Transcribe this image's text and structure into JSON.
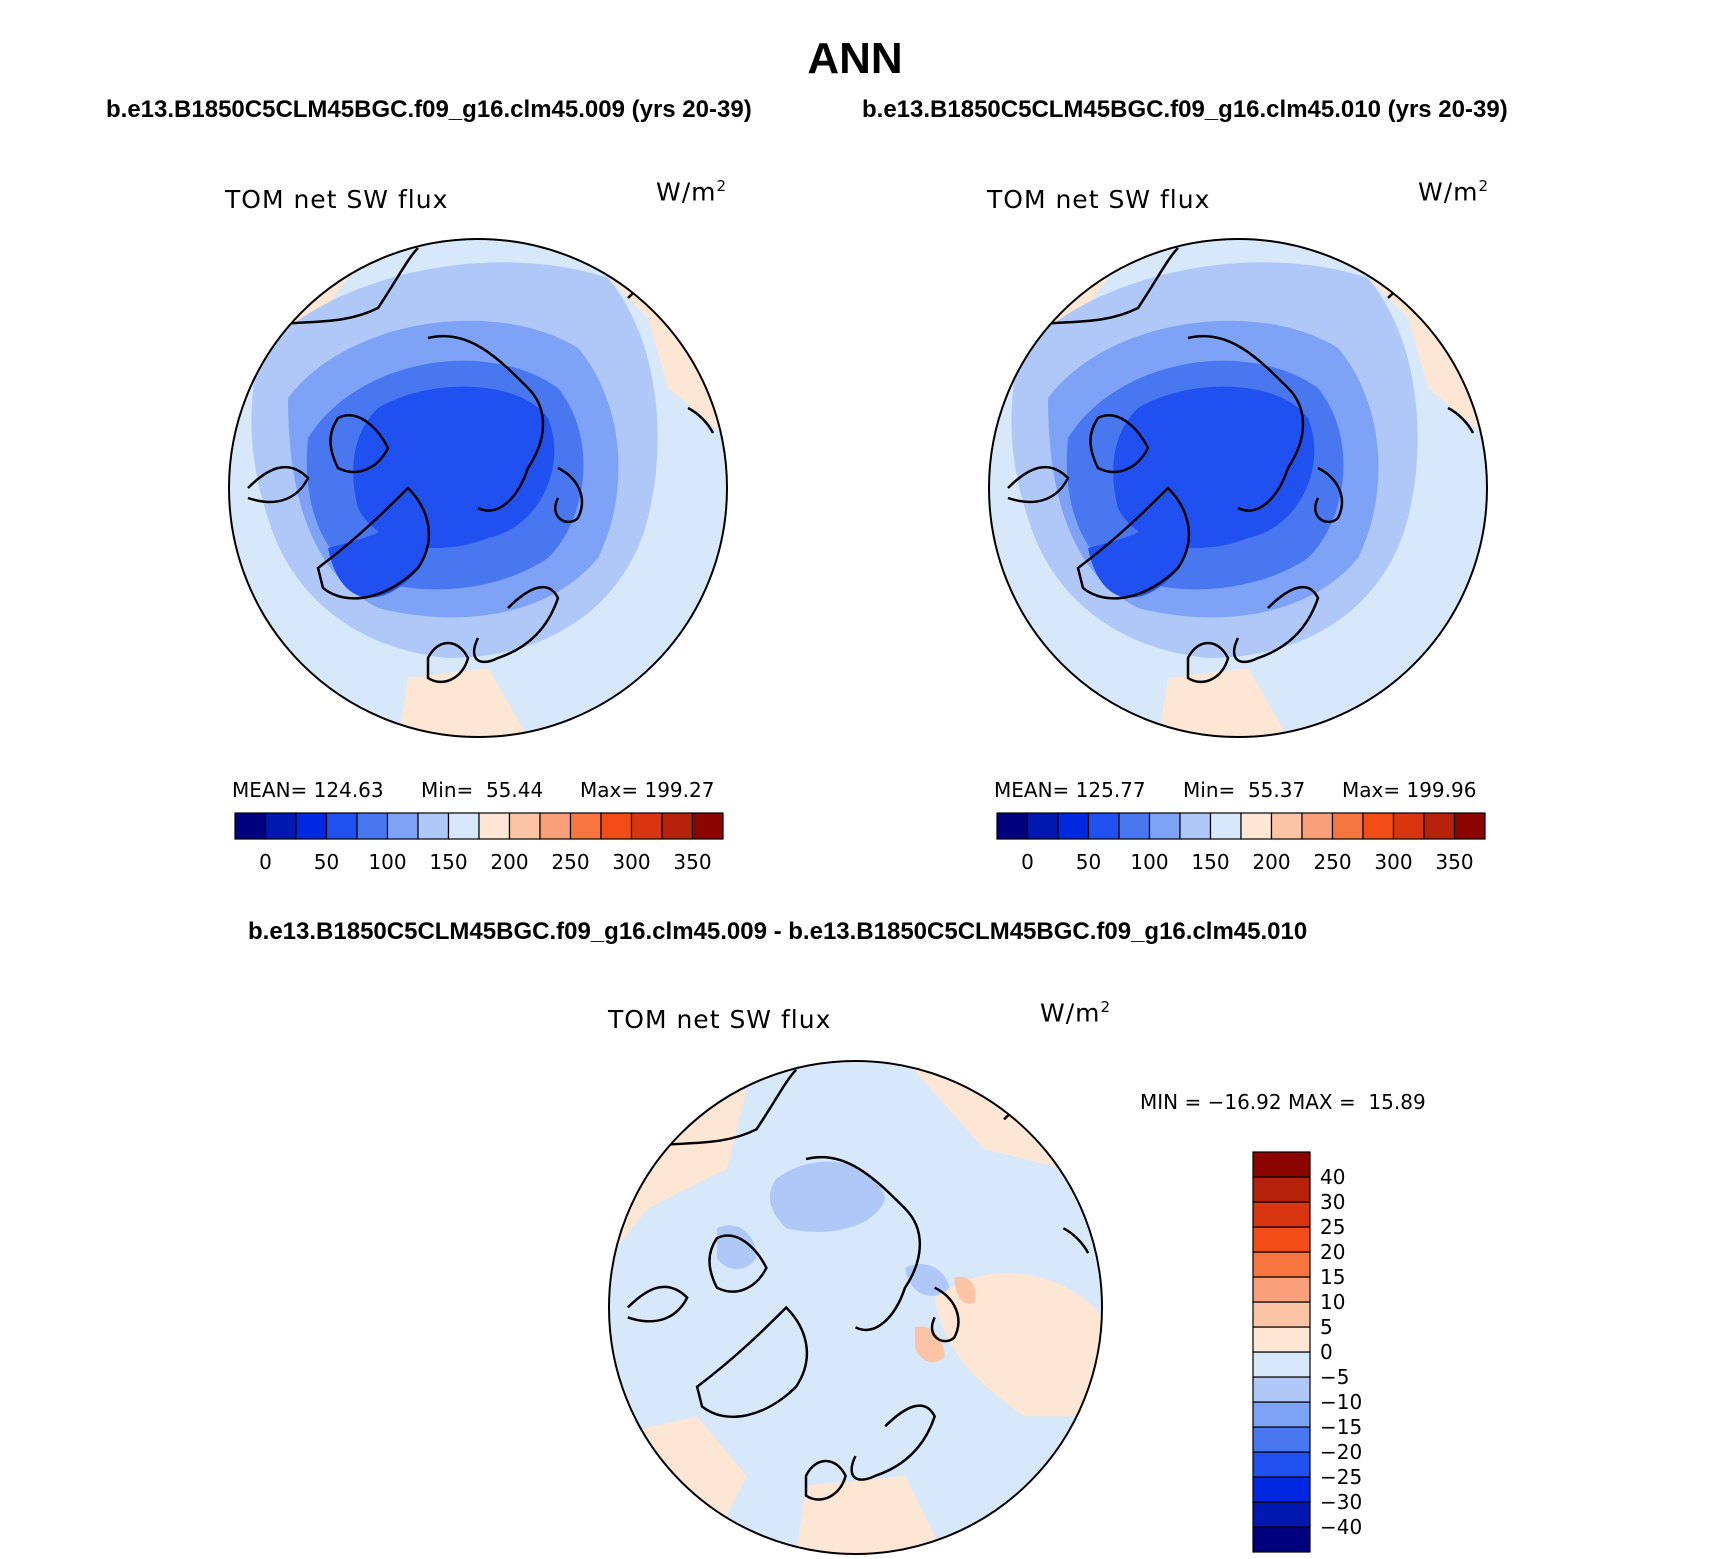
{
  "title": "ANN",
  "top_subtitle": {
    "left": "b.e13.B1850C5CLM45BGC.f09_g16.clm45.009 (yrs 20-39)",
    "right": "b.e13.B1850C5CLM45BGC.f09_g16.clm45.010 (yrs 20-39)"
  },
  "diff_subtitle": "b.e13.B1850C5CLM45BGC.f09_g16.clm45.009 - b.e13.B1850C5CLM45BGC.f09_g16.clm45.010",
  "variable_label": "TOM net SW flux",
  "units": "W/m",
  "units_sup": "2",
  "panels": [
    {
      "mean_label": "MEAN= 124.63",
      "min_label": "Min=  55.44",
      "max_label": "Max= 199.27"
    },
    {
      "mean_label": "MEAN= 125.77",
      "min_label": "Min=  55.37",
      "max_label": "Max= 199.96"
    }
  ],
  "diff_panel": {
    "minmax_label": "MIN = −16.92 MAX =  15.89"
  },
  "abs_colorbar": {
    "colors": [
      "#00007f",
      "#0018b0",
      "#0028e0",
      "#2050f0",
      "#4877f0",
      "#7ea2f5",
      "#b0c8f8",
      "#d8e8fb",
      "#fde6d4",
      "#fbc4a6",
      "#f9a07a",
      "#f7763f",
      "#f24d16",
      "#d93510",
      "#b52209",
      "#8b0500"
    ],
    "ticks": [
      "0",
      "50",
      "100",
      "150",
      "200",
      "250",
      "300",
      "350"
    ]
  },
  "diff_colorbar": {
    "colors": [
      "#00007f",
      "#0018b0",
      "#0028e0",
      "#2050f0",
      "#4877f0",
      "#7ea2f5",
      "#b0c8f8",
      "#d8e8fb",
      "#fde6d4",
      "#fbc4a6",
      "#f9a07a",
      "#f7763f",
      "#f24d16",
      "#d93510",
      "#b52209",
      "#8b0500"
    ],
    "ticks": [
      "−40",
      "−30",
      "−25",
      "−20",
      "−15",
      "−10",
      "−5",
      "0",
      "5",
      "10",
      "15",
      "20",
      "25",
      "30",
      "40"
    ]
  }
}
